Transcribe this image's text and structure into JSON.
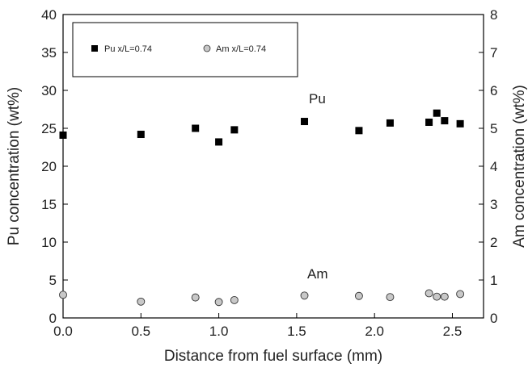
{
  "chart_data": {
    "type": "scatter",
    "xlabel": "Distance from fuel surface (mm)",
    "ylabel_left": "Pu concentration (wt%)",
    "ylabel_right": "Am concentration (wt%)",
    "xlim": [
      0,
      2.7
    ],
    "ylim_left": [
      0,
      40
    ],
    "ylim_right": [
      0,
      8
    ],
    "xticks": [
      "0.0",
      "0.5",
      "1.0",
      "1.5",
      "2.0",
      "2.5"
    ],
    "yticks_left": [
      "0",
      "5",
      "10",
      "15",
      "20",
      "25",
      "30",
      "35",
      "40"
    ],
    "yticks_right": [
      "0",
      "1",
      "2",
      "3",
      "4",
      "5",
      "6",
      "7",
      "8"
    ],
    "legend_position": "top-left",
    "grid": false,
    "annotations": [
      {
        "text": "Pu",
        "series": "Pu x/L=0.74"
      },
      {
        "text": "Am",
        "series": "Am x/L=0.74"
      }
    ],
    "series": [
      {
        "name": "Pu x/L=0.74",
        "axis": "left",
        "marker": "filled-square",
        "color": "#000000",
        "x": [
          0.0,
          0.5,
          0.85,
          1.0,
          1.1,
          1.55,
          1.9,
          2.1,
          2.35,
          2.4,
          2.45,
          2.55
        ],
        "y": [
          24.1,
          24.2,
          25.0,
          23.2,
          24.8,
          25.9,
          24.7,
          25.7,
          25.8,
          27.0,
          26.0,
          25.6
        ]
      },
      {
        "name": "Am x/L=0.74",
        "axis": "right",
        "marker": "open-circle",
        "color": "#c8c8c8",
        "x": [
          0.0,
          0.5,
          0.85,
          1.0,
          1.1,
          1.55,
          1.9,
          2.1,
          2.35,
          2.4,
          2.45,
          2.55
        ],
        "y": [
          0.61,
          0.43,
          0.54,
          0.42,
          0.47,
          0.59,
          0.58,
          0.55,
          0.65,
          0.56,
          0.56,
          0.63
        ]
      }
    ]
  }
}
